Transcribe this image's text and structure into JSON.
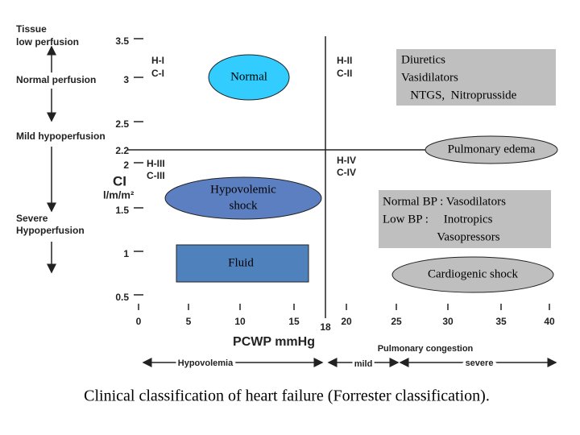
{
  "left_axis": {
    "tissue": "Tissue",
    "low": "low perfusion",
    "normal": "Normal perfusion",
    "mild": "Mild hypoperfusion",
    "severe": "Severe",
    "hypo": "Hypoperfusion"
  },
  "y_axis": {
    "label": "CI",
    "unit": "l/m/m²",
    "ticks": [
      "3.5",
      "3",
      "2.5",
      "2.2",
      "2",
      "1.5",
      "1",
      "0.5"
    ]
  },
  "x_axis": {
    "label": "PCWP mmHg",
    "ticks": [
      "0",
      "5",
      "10",
      "15",
      "18",
      "20",
      "25",
      "30",
      "35",
      "40"
    ]
  },
  "quadrants": [
    {
      "h": "H-I",
      "c": "C-I"
    },
    {
      "h": "H-II",
      "c": "C-II"
    },
    {
      "h": "H-III",
      "c": "C-III"
    },
    {
      "h": "H-IV",
      "c": "C-IV"
    }
  ],
  "boxes": {
    "normal": "Normal",
    "therapy": [
      "Diuretics",
      "Vasidilators",
      "   NTGS,  Nitroprusside"
    ],
    "edema": "Pulmonary edema",
    "hypovolemic": [
      "Hypovolemic",
      "shock"
    ],
    "fluid": "Fluid",
    "bp": [
      "Normal BP : Vasodilators",
      "Low BP :     Inotropics",
      "                  Vasopressors"
    ],
    "cardiogenic": "Cardiogenic shock"
  },
  "bottom": {
    "hypovolemia": "Hypovolemia",
    "mild": "mild",
    "congestion": "Pulmonary congestion",
    "severe": "severe"
  },
  "caption": "Clinical classification of heart failure (Forrester classification)."
}
